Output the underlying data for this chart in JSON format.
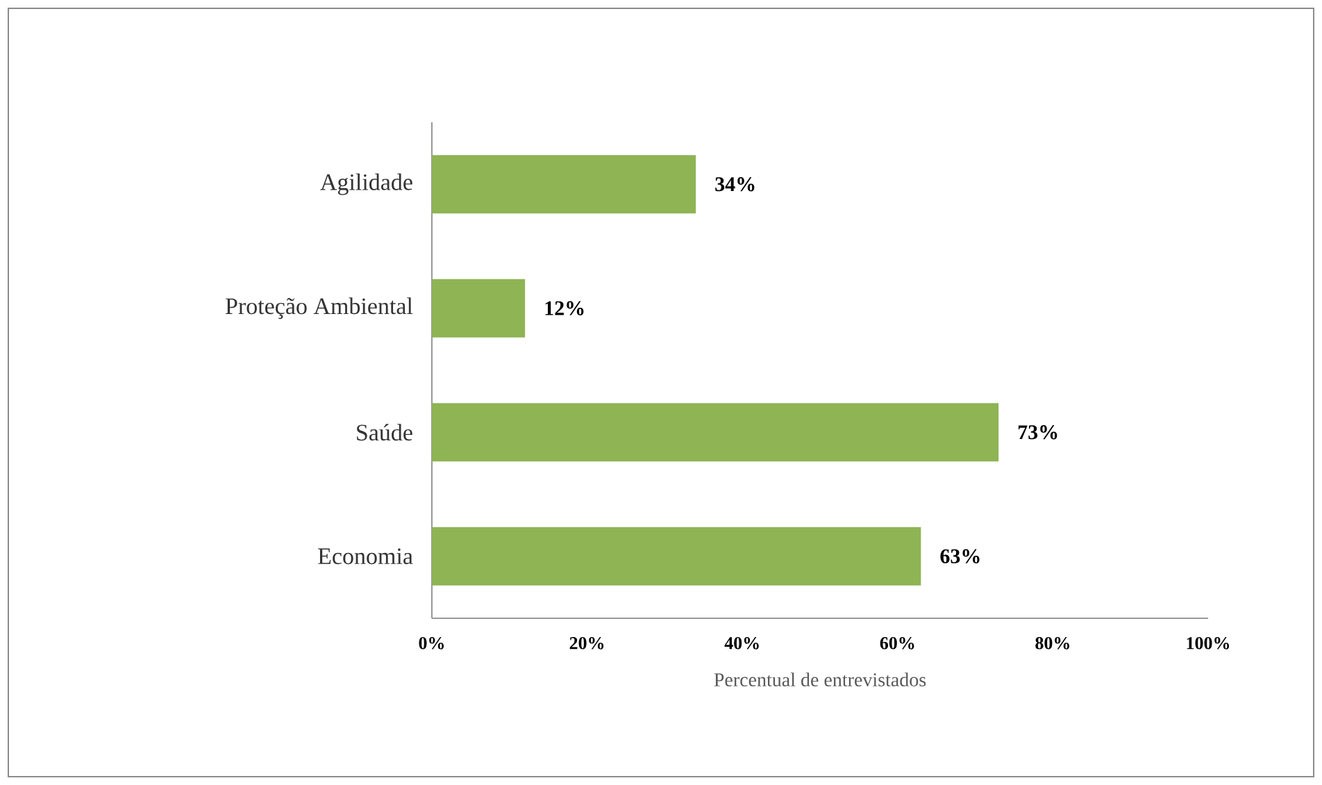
{
  "chart_data": {
    "type": "bar",
    "orientation": "horizontal",
    "categories": [
      "Agilidade",
      "Proteção Ambiental",
      "Saúde",
      "Economia"
    ],
    "values": [
      34,
      12,
      73,
      63
    ],
    "value_labels": [
      "34%",
      "12%",
      "73%",
      "63%"
    ],
    "color": "#8eb454",
    "xlabel": "Percentual de entrevistados",
    "xlim": [
      0,
      100
    ],
    "xticks": [
      {
        "value": 0,
        "label": "0%"
      },
      {
        "value": 20,
        "label": "20%"
      },
      {
        "value": 40,
        "label": "40%"
      },
      {
        "value": 60,
        "label": "60%"
      },
      {
        "value": 80,
        "label": "80%"
      },
      {
        "value": 100,
        "label": "100%"
      }
    ]
  }
}
